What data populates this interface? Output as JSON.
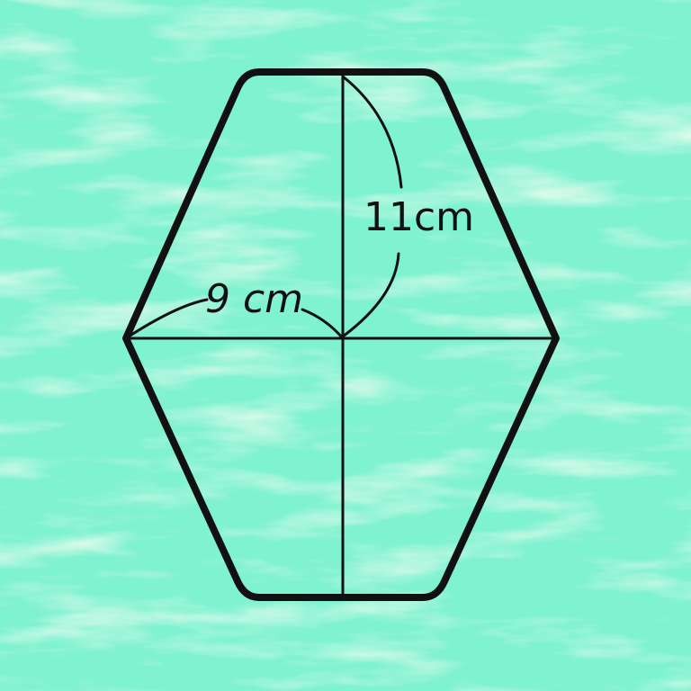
{
  "colors": {
    "background": "#7ff2d0",
    "background_light": "#c9f7d9",
    "background_dark": "#5fe0c2",
    "stroke": "#111111"
  },
  "diagram": {
    "shape": "hexagon",
    "labels": {
      "horizontal_measure": "9 cm",
      "vertical_measure": "11cm"
    }
  }
}
